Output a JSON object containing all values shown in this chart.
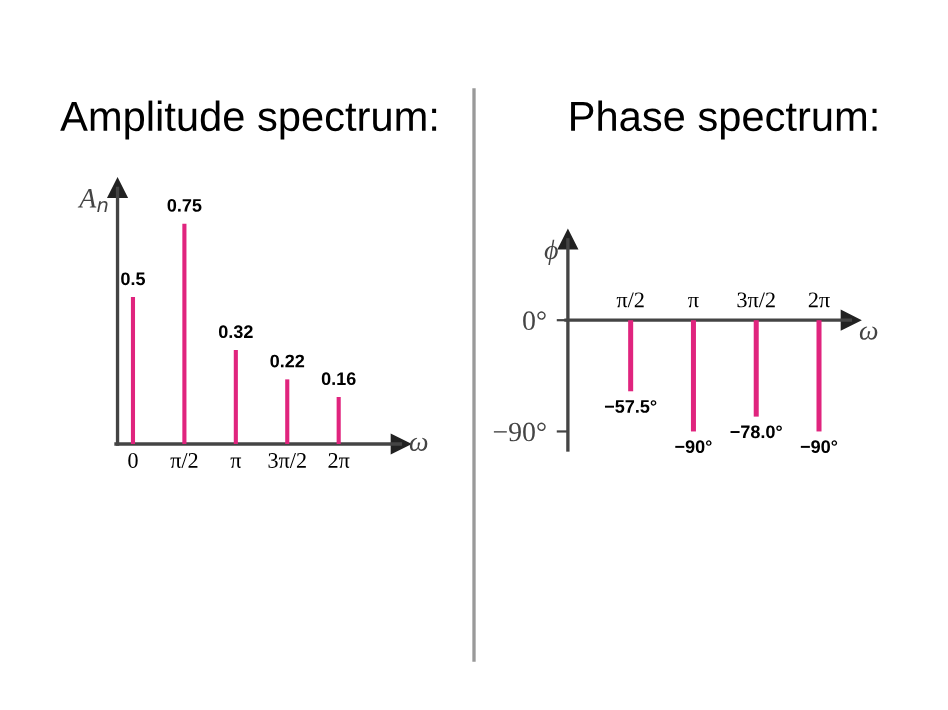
{
  "chart_data": [
    {
      "type": "bar",
      "title": "Amplitude spectrum:",
      "xlabel": "ω",
      "ylabel": "A$_{n}$",
      "categories": [
        "0",
        "π/2",
        "π",
        "3π/2",
        "2π"
      ],
      "values": [
        0.5,
        0.75,
        0.32,
        0.22,
        0.16
      ],
      "color": "#e0247e",
      "data_labels": true,
      "ylim": [
        0,
        0.87
      ],
      "tick_labels": "x",
      "grid": false,
      "legend": false
    },
    {
      "type": "bar",
      "title": "Phase spectrum:",
      "xlabel": "ω",
      "ylabel": "ϕ",
      "categories": [
        "π/2",
        "π",
        "3π/2",
        "2π"
      ],
      "values": [
        -57.5,
        -90,
        -78.0,
        -90
      ],
      "color": "#e0247e",
      "value_labels": [
        "−57.5°",
        "−90°",
        "−78.0°",
        "−90°"
      ],
      "ylim": [
        -105,
        65
      ],
      "yticks": [
        {
          "value": 0,
          "label": "0°"
        },
        {
          "value": -90,
          "label": "−90°"
        }
      ],
      "grid": false,
      "legend": false
    }
  ]
}
